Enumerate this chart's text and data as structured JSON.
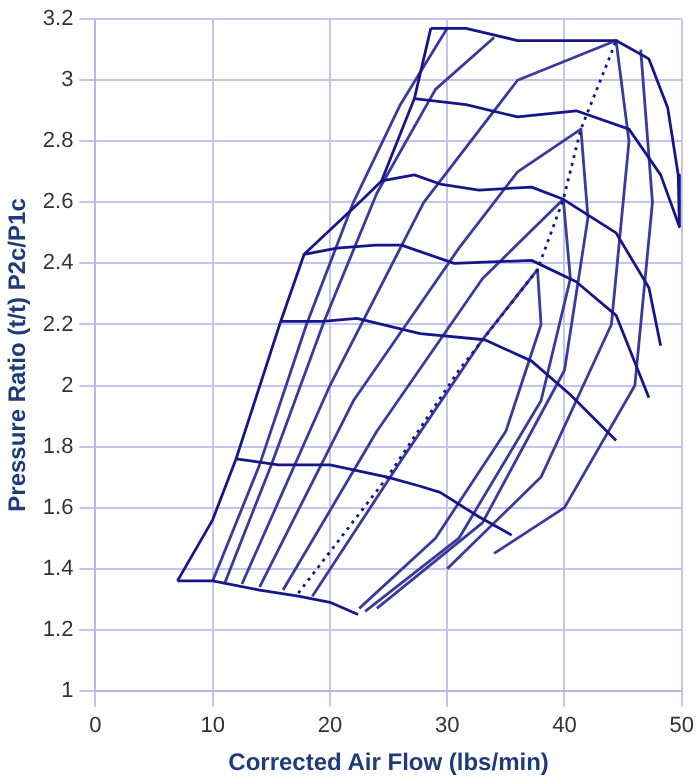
{
  "chart_data": {
    "type": "line",
    "xlabel": "Corrected Air Flow (lbs/min)",
    "ylabel": "Pressure Ratio (t/t) P2c/P1c",
    "xlim": [
      0,
      50
    ],
    "xticks": [
      0,
      10,
      20,
      30,
      40,
      50
    ],
    "ylim": [
      1,
      3.2
    ],
    "yticks": [
      1,
      1.2,
      1.4,
      1.6,
      1.8,
      2,
      2.2,
      2.4,
      2.6,
      2.8,
      3,
      3.2
    ],
    "grid": true,
    "legend": false,
    "marker": "none",
    "series": [
      {
        "color": "#16168a",
        "x": [
          7,
          10,
          12,
          15.8,
          17.8,
          22.8,
          24.4,
          27.2,
          28.6
        ],
        "values": [
          1.36,
          1.56,
          1.76,
          2.21,
          2.43,
          2.61,
          2.67,
          2.94,
          3.17
        ]
      },
      {
        "color": "#16168a",
        "x": [
          7,
          10,
          14,
          17.3,
          20,
          22.4
        ],
        "values": [
          1.36,
          1.36,
          1.33,
          1.31,
          1.29,
          1.25
        ]
      },
      {
        "color": "#16168a",
        "x": [
          12,
          15.6,
          20,
          24.9,
          27.7,
          29.4,
          32.7,
          35.5
        ],
        "values": [
          1.76,
          1.74,
          1.74,
          1.7,
          1.67,
          1.65,
          1.57,
          1.51
        ]
      },
      {
        "color": "#16168a",
        "x": [
          15.8,
          19.4,
          22.3,
          27.7,
          33.2,
          37.2,
          40.5,
          44.4
        ],
        "values": [
          2.21,
          2.21,
          2.22,
          2.17,
          2.15,
          2.08,
          1.97,
          1.82
        ]
      },
      {
        "color": "#16168a",
        "x": [
          17.8,
          20.6,
          23.9,
          26.1,
          30.6,
          37.2,
          41,
          44.4,
          47.2
        ],
        "values": [
          2.43,
          2.45,
          2.46,
          2.46,
          2.4,
          2.41,
          2.34,
          2.23,
          1.96
        ]
      },
      {
        "color": "#16168a",
        "x": [
          24.4,
          27.2,
          29.4,
          32.7,
          37.2,
          39.9,
          44.4,
          47.2,
          48.2
        ],
        "values": [
          2.67,
          2.69,
          2.66,
          2.64,
          2.65,
          2.61,
          2.5,
          2.32,
          2.13
        ]
      },
      {
        "color": "#16168a",
        "x": [
          27.2,
          31.6,
          36,
          41,
          45.5,
          48.2,
          49.8
        ],
        "values": [
          2.94,
          2.92,
          2.88,
          2.9,
          2.84,
          2.69,
          2.52
        ]
      },
      {
        "color": "#16168a",
        "x": [
          28.6,
          31.6,
          36,
          41.5,
          44.4,
          47.2,
          48.8,
          49.7,
          49.8
        ],
        "values": [
          3.17,
          3.17,
          3.13,
          3.13,
          3.13,
          3.07,
          2.91,
          2.69,
          2.52
        ]
      },
      {
        "color": "#16168a",
        "line_style": "dotted",
        "x": [
          17.3,
          24.9,
          31,
          37.7,
          39.9,
          41.4,
          43.9,
          44.4
        ],
        "values": [
          1.32,
          1.7,
          2.05,
          2.38,
          2.61,
          2.84,
          3.08,
          3.13
        ]
      },
      {
        "color": "#3a3a9e",
        "x": [
          18.5,
          26,
          33,
          37.7,
          38,
          35,
          29,
          22.5
        ],
        "values": [
          1.31,
          1.75,
          2.15,
          2.38,
          2.2,
          1.85,
          1.5,
          1.27
        ]
      },
      {
        "color": "#3a3a9e",
        "x": [
          16,
          24,
          33,
          39.9,
          40.5,
          38,
          31,
          23
        ],
        "values": [
          1.33,
          1.85,
          2.35,
          2.61,
          2.35,
          1.95,
          1.5,
          1.26
        ]
      },
      {
        "color": "#3a3a9e",
        "x": [
          14,
          22,
          31,
          36,
          41.4,
          42,
          40,
          33,
          24
        ],
        "values": [
          1.34,
          1.95,
          2.45,
          2.7,
          2.84,
          2.55,
          2.05,
          1.55,
          1.27
        ]
      },
      {
        "color": "#3a3a9e",
        "x": [
          12.5,
          20,
          28,
          36,
          44.4,
          45.5,
          44,
          38,
          30
        ],
        "values": [
          1.35,
          2,
          2.6,
          3,
          3.13,
          2.8,
          2.2,
          1.7,
          1.4
        ]
      },
      {
        "color": "#3a3a9e",
        "x": [
          46.5,
          47.5,
          46,
          40,
          34
        ],
        "values": [
          3.1,
          2.6,
          2,
          1.6,
          1.45
        ]
      },
      {
        "color": "#3a3a9e",
        "x": [
          10,
          14,
          18,
          22,
          26,
          30
        ],
        "values": [
          1.36,
          1.74,
          2.2,
          2.6,
          2.92,
          3.17
        ]
      },
      {
        "color": "#3a3a9e",
        "x": [
          11,
          15,
          19.5,
          24,
          29,
          34
        ],
        "values": [
          1.35,
          1.74,
          2.21,
          2.63,
          2.97,
          3.14
        ]
      }
    ]
  }
}
